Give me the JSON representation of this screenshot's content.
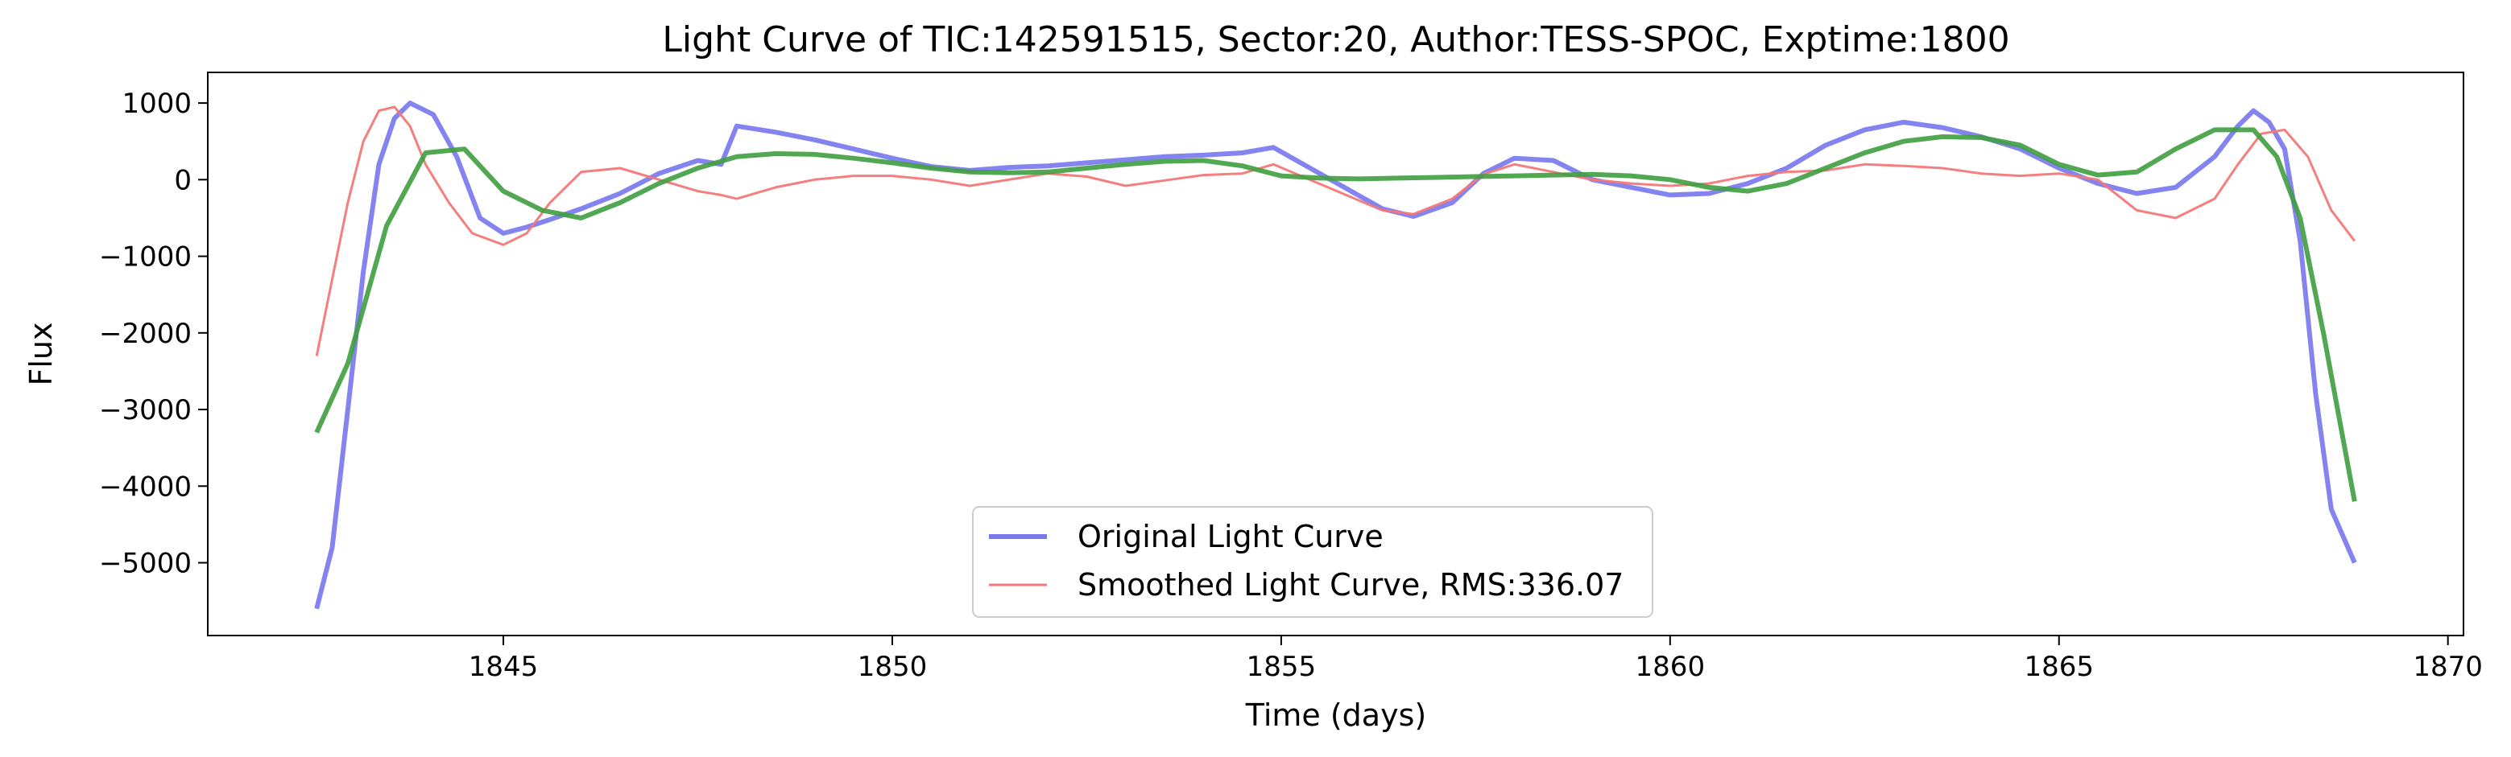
{
  "chart_data": {
    "type": "line",
    "title": "Light Curve of TIC:142591515, Sector:20, Author:TESS-SPOC, Exptime:1800",
    "xlabel": "Time (days)",
    "ylabel": "Flux",
    "xlim": [
      1841.2,
      1870.2
    ],
    "ylim": [
      -5950,
      1400
    ],
    "x_ticks": [
      1845,
      1850,
      1855,
      1860,
      1865,
      1870
    ],
    "y_ticks": [
      1000,
      0,
      -1000,
      -2000,
      -3000,
      -4000,
      -5000
    ],
    "x_tick_labels": [
      "1845",
      "1850",
      "1855",
      "1860",
      "1865",
      "1870"
    ],
    "y_tick_labels": [
      "1000",
      "0",
      "−1000",
      "−2000",
      "−3000",
      "−4000",
      "−5000"
    ],
    "grid": false,
    "legend_position": "lower-center",
    "series": [
      {
        "name": "Original Light Curve",
        "color": "#7777ee",
        "x": [
          1842.6,
          1842.8,
          1843.0,
          1843.2,
          1843.4,
          1843.6,
          1843.8,
          1844.1,
          1844.4,
          1844.7,
          1845.0,
          1845.3,
          1845.6,
          1846.0,
          1846.5,
          1847.0,
          1847.5,
          1847.8,
          1848.0,
          1848.5,
          1849.0,
          1849.5,
          1850.0,
          1850.5,
          1851.0,
          1851.5,
          1852.0,
          1852.5,
          1853.0,
          1853.5,
          1854.0,
          1854.5,
          1854.9,
          1856.3,
          1856.7,
          1857.2,
          1857.6,
          1858.0,
          1858.5,
          1859.0,
          1859.5,
          1860.0,
          1860.5,
          1861.0,
          1861.5,
          1862.0,
          1862.5,
          1863.0,
          1863.5,
          1864.0,
          1864.5,
          1865.0,
          1865.5,
          1866.0,
          1866.5,
          1867.0,
          1867.3,
          1867.5,
          1867.7,
          1867.9,
          1868.1,
          1868.3,
          1868.5,
          1868.8
        ],
        "y": [
          -5600,
          -4800,
          -3000,
          -1200,
          200,
          800,
          1000,
          850,
          300,
          -500,
          -700,
          -620,
          -520,
          -380,
          -180,
          80,
          250,
          200,
          700,
          620,
          520,
          400,
          280,
          170,
          120,
          160,
          180,
          220,
          260,
          300,
          320,
          350,
          420,
          -380,
          -480,
          -300,
          80,
          280,
          250,
          0,
          -100,
          -200,
          -180,
          -50,
          150,
          450,
          650,
          750,
          680,
          560,
          400,
          150,
          -50,
          -180,
          -100,
          300,
          700,
          900,
          750,
          400,
          -800,
          -2800,
          -4300,
          -5000
        ]
      },
      {
        "name": "Smoothed Light Curve, RMS:336.07",
        "color": "#f47777",
        "x": [
          1842.6,
          1842.8,
          1843.0,
          1843.2,
          1843.4,
          1843.6,
          1843.8,
          1844.0,
          1844.3,
          1844.6,
          1845.0,
          1845.3,
          1845.6,
          1846.0,
          1846.5,
          1847.0,
          1847.5,
          1847.8,
          1848.0,
          1848.5,
          1849.0,
          1849.5,
          1850.0,
          1850.5,
          1851.0,
          1851.5,
          1852.0,
          1852.5,
          1853.0,
          1853.5,
          1854.0,
          1854.5,
          1854.9,
          1856.3,
          1856.7,
          1857.2,
          1857.6,
          1858.0,
          1858.5,
          1859.0,
          1859.5,
          1860.0,
          1860.5,
          1861.0,
          1861.5,
          1862.0,
          1862.5,
          1863.0,
          1863.5,
          1864.0,
          1864.5,
          1865.0,
          1865.5,
          1866.0,
          1866.5,
          1867.0,
          1867.3,
          1867.6,
          1867.9,
          1868.2,
          1868.5,
          1868.8
        ],
        "y": [
          -2300,
          -1300,
          -300,
          500,
          900,
          950,
          700,
          200,
          -300,
          -700,
          -850,
          -700,
          -300,
          100,
          150,
          0,
          -150,
          -200,
          -250,
          -100,
          0,
          50,
          50,
          0,
          -80,
          0,
          80,
          40,
          -80,
          -10,
          60,
          80,
          200,
          -400,
          -450,
          -250,
          70,
          200,
          100,
          0,
          -50,
          -80,
          -50,
          50,
          100,
          120,
          200,
          180,
          150,
          80,
          50,
          80,
          0,
          -400,
          -500,
          -250,
          200,
          600,
          650,
          300,
          -400,
          -800
        ]
      },
      {
        "name": "",
        "color": "#3f9f3f",
        "x": [
          1842.6,
          1843.0,
          1843.5,
          1844.0,
          1844.5,
          1845.0,
          1845.5,
          1846.0,
          1846.5,
          1847.0,
          1847.5,
          1848.0,
          1848.5,
          1849.0,
          1849.5,
          1850.0,
          1850.5,
          1851.0,
          1851.5,
          1852.0,
          1852.5,
          1853.0,
          1853.5,
          1854.0,
          1854.5,
          1855.0,
          1855.5,
          1856.0,
          1856.5,
          1857.0,
          1857.5,
          1858.0,
          1858.5,
          1859.0,
          1859.5,
          1860.0,
          1860.5,
          1861.0,
          1861.5,
          1862.0,
          1862.5,
          1863.0,
          1863.5,
          1864.0,
          1864.5,
          1865.0,
          1865.5,
          1866.0,
          1866.5,
          1867.0,
          1867.5,
          1867.8,
          1868.1,
          1868.4,
          1868.8
        ],
        "y": [
          -3300,
          -2400,
          -600,
          350,
          400,
          -150,
          -400,
          -500,
          -300,
          -50,
          150,
          300,
          340,
          330,
          280,
          220,
          150,
          100,
          90,
          100,
          150,
          200,
          240,
          250,
          180,
          50,
          20,
          10,
          20,
          30,
          40,
          50,
          60,
          70,
          50,
          0,
          -100,
          -150,
          -50,
          150,
          350,
          500,
          560,
          550,
          450,
          200,
          60,
          100,
          400,
          650,
          650,
          300,
          -500,
          -2000,
          -4200
        ]
      }
    ]
  }
}
